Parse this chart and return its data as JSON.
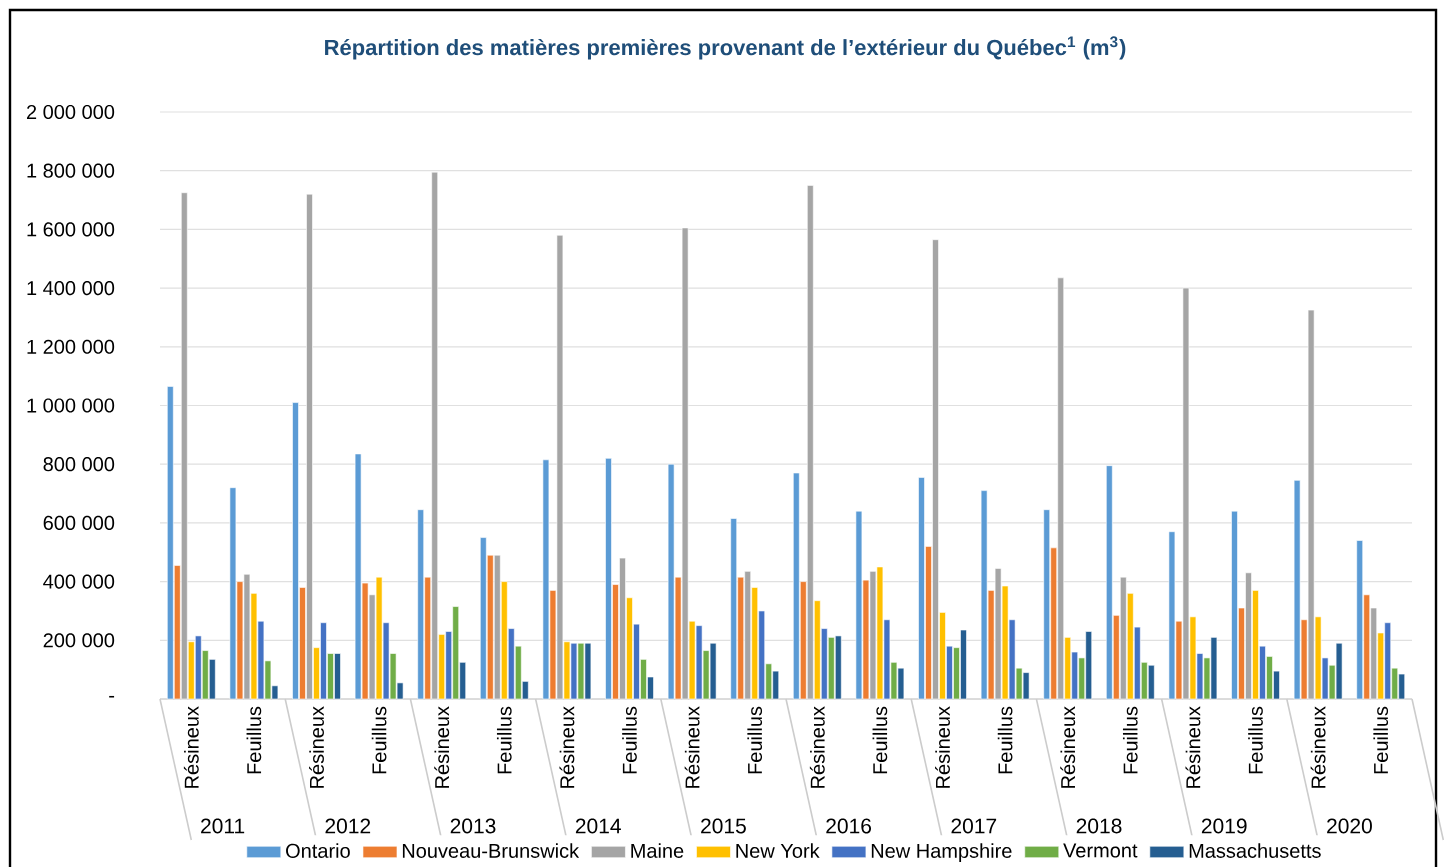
{
  "chart_data": {
    "type": "bar",
    "title": "Répartition des matières premières provenant de l’extérieur du Québec$^{1}$ (m$^{3}$)",
    "categories": [
      "Résineux",
      "Feuillus",
      "Résineux",
      "Feuillus",
      "Résineux",
      "Feuillus",
      "Résineux",
      "Feuillus",
      "Résineux",
      "Feuillus",
      "Résineux",
      "Feuillus",
      "Résineux",
      "Feuillus",
      "Résineux",
      "Feuillus",
      "Résineux",
      "Feuillus",
      "Résineux",
      "Feuillus"
    ],
    "annotations": [
      "2011",
      "2012",
      "2013",
      "2014",
      "2015",
      "2016",
      "2017",
      "2018",
      "2019",
      "2020"
    ],
    "series": [
      {
        "name": "Ontario",
        "color": "#5b9bd5",
        "values": [
          1065000,
          720000,
          1010000,
          835000,
          645000,
          550000,
          815000,
          820000,
          800000,
          615000,
          770000,
          640000,
          755000,
          710000,
          645000,
          795000,
          570000,
          640000,
          745000,
          540000
        ]
      },
      {
        "name": "Nouveau-Brunswick",
        "color": "#ed7d31",
        "values": [
          455000,
          400000,
          380000,
          395000,
          415000,
          490000,
          370000,
          390000,
          415000,
          415000,
          400000,
          405000,
          520000,
          370000,
          515000,
          285000,
          265000,
          310000,
          270000,
          355000
        ]
      },
      {
        "name": "Maine",
        "color": "#a5a5a5",
        "values": [
          1725000,
          425000,
          1720000,
          355000,
          1795000,
          490000,
          1580000,
          480000,
          1605000,
          435000,
          1750000,
          435000,
          1565000,
          445000,
          1435000,
          415000,
          1400000,
          430000,
          1325000,
          310000
        ]
      },
      {
        "name": "New York",
        "color": "#ffc000",
        "values": [
          195000,
          360000,
          175000,
          415000,
          220000,
          400000,
          195000,
          345000,
          265000,
          380000,
          335000,
          450000,
          295000,
          385000,
          210000,
          360000,
          280000,
          370000,
          280000,
          225000
        ]
      },
      {
        "name": "New Hampshire",
        "color": "#4472c4",
        "values": [
          215000,
          265000,
          260000,
          260000,
          230000,
          240000,
          190000,
          255000,
          250000,
          300000,
          240000,
          270000,
          180000,
          270000,
          160000,
          245000,
          155000,
          180000,
          140000,
          260000
        ]
      },
      {
        "name": "Vermont",
        "color": "#70ad47",
        "values": [
          165000,
          130000,
          155000,
          155000,
          315000,
          180000,
          190000,
          135000,
          165000,
          120000,
          210000,
          125000,
          175000,
          105000,
          140000,
          125000,
          140000,
          145000,
          115000,
          105000
        ]
      },
      {
        "name": "Massachusetts",
        "color": "#255e91",
        "values": [
          135000,
          45000,
          155000,
          55000,
          125000,
          60000,
          190000,
          75000,
          190000,
          95000,
          215000,
          105000,
          235000,
          90000,
          230000,
          115000,
          210000,
          95000,
          190000,
          85000
        ]
      }
    ],
    "ylim": [
      0,
      2000000
    ],
    "yticks": [
      {
        "value": 0,
        "label": "-"
      },
      {
        "value": 200000,
        "label": "200 000"
      },
      {
        "value": 400000,
        "label": "400 000"
      },
      {
        "value": 600000,
        "label": "600 000"
      },
      {
        "value": 800000,
        "label": "800 000"
      },
      {
        "value": 1000000,
        "label": "1 000 000"
      },
      {
        "value": 1200000,
        "label": "1 200 000"
      },
      {
        "value": 1400000,
        "label": "1 400 000"
      },
      {
        "value": 1600000,
        "label": "1 600 000"
      },
      {
        "value": 1800000,
        "label": "1 800 000"
      },
      {
        "value": 2000000,
        "label": "2 000 000"
      }
    ],
    "grid": "y",
    "legend": "bottom"
  }
}
